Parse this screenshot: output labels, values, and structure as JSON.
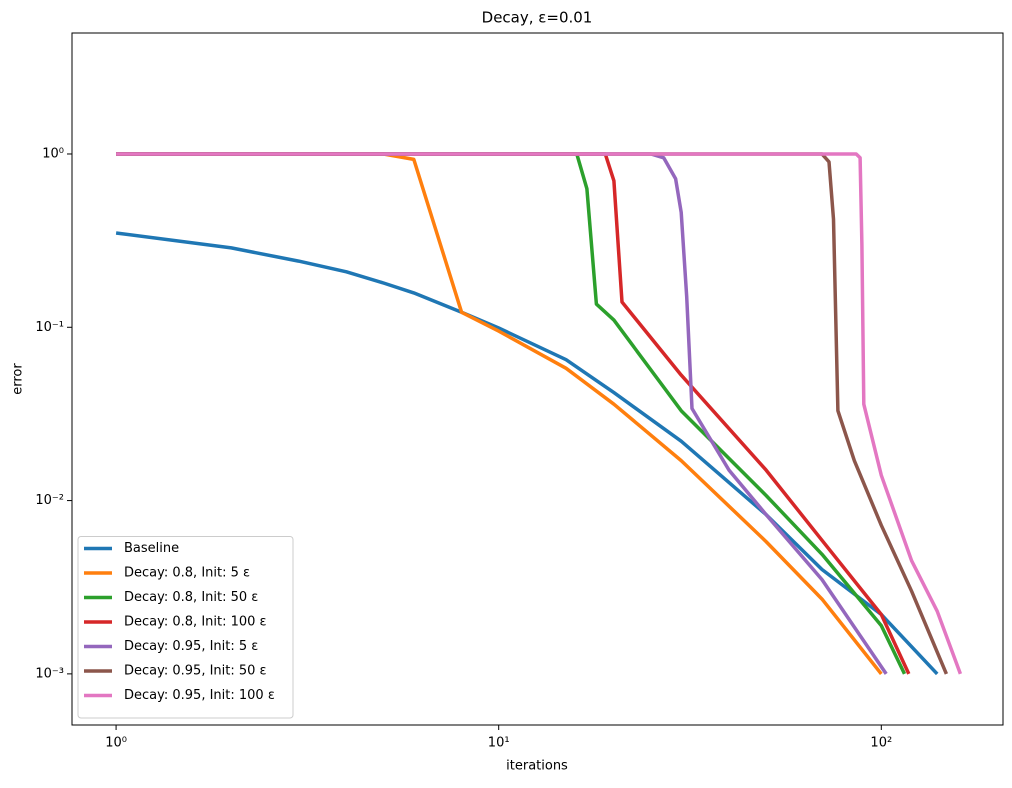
{
  "chart_data": {
    "type": "line",
    "title": "Decay, ε=0.01",
    "xlabel": "iterations",
    "ylabel": "error",
    "xscale": "log",
    "yscale": "log",
    "grid": false,
    "legend": "lower left",
    "xlim": [
      0.767,
      208
    ],
    "ylim": [
      0.000507,
      4.99
    ],
    "xticks": [
      {
        "value": 1,
        "label": "10⁰"
      },
      {
        "value": 10,
        "label": "10¹"
      },
      {
        "value": 100,
        "label": "10²"
      }
    ],
    "yticks": [
      {
        "value": 0.001,
        "label": "10⁻³"
      },
      {
        "value": 0.01,
        "label": "10⁻²"
      },
      {
        "value": 0.1,
        "label": "10⁻¹"
      },
      {
        "value": 1,
        "label": "10⁰"
      }
    ],
    "series": [
      {
        "name": "Baseline",
        "color": "#1f77b4",
        "x": [
          1,
          2,
          3,
          4,
          5,
          6,
          8,
          10,
          15,
          20,
          30,
          50,
          70,
          100,
          140
        ],
        "values": [
          0.35,
          0.287,
          0.241,
          0.209,
          0.18,
          0.158,
          0.122,
          0.099,
          0.065,
          0.042,
          0.022,
          0.0083,
          0.004,
          0.0022,
          0.001
        ]
      },
      {
        "name": "Decay: 0.8, Init: 5 ε",
        "color": "#ff7f0e",
        "x": [
          1,
          5,
          6,
          8,
          10,
          15,
          20,
          30,
          50,
          70,
          100
        ],
        "values": [
          1,
          1,
          0.93,
          0.122,
          0.095,
          0.058,
          0.036,
          0.017,
          0.0058,
          0.0027,
          0.001
        ]
      },
      {
        "name": "Decay: 0.8, Init: 50 ε",
        "color": "#2ca02c",
        "x": [
          1,
          16,
          17,
          18,
          20,
          30,
          50,
          70,
          100,
          115
        ],
        "values": [
          1,
          1,
          0.63,
          0.136,
          0.11,
          0.033,
          0.0107,
          0.0049,
          0.0019,
          0.001
        ]
      },
      {
        "name": "Decay: 0.8, Init: 100 ε",
        "color": "#d62728",
        "x": [
          1,
          19,
          20,
          21,
          30,
          50,
          70,
          100,
          118
        ],
        "values": [
          1,
          1,
          0.7,
          0.14,
          0.053,
          0.015,
          0.0059,
          0.0022,
          0.001
        ]
      },
      {
        "name": "Decay: 0.95, Init: 5 ε",
        "color": "#9467bd",
        "x": [
          1,
          25,
          27,
          29,
          30,
          31,
          32,
          40,
          50,
          70,
          103
        ],
        "values": [
          1,
          1,
          0.95,
          0.72,
          0.46,
          0.15,
          0.034,
          0.015,
          0.0083,
          0.0035,
          0.001
        ]
      },
      {
        "name": "Decay: 0.95, Init: 50 ε",
        "color": "#8c564b",
        "x": [
          1,
          70,
          73,
          75,
          77,
          85,
          100,
          120,
          148
        ],
        "values": [
          1,
          1,
          0.9,
          0.42,
          0.033,
          0.017,
          0.0072,
          0.003,
          0.001
        ]
      },
      {
        "name": "Decay: 0.95, Init: 100 ε",
        "color": "#e377c2",
        "x": [
          1,
          86,
          88,
          89,
          90,
          100,
          120,
          140,
          161
        ],
        "values": [
          1,
          1,
          0.95,
          0.3,
          0.036,
          0.014,
          0.0045,
          0.0023,
          0.001
        ]
      }
    ]
  }
}
